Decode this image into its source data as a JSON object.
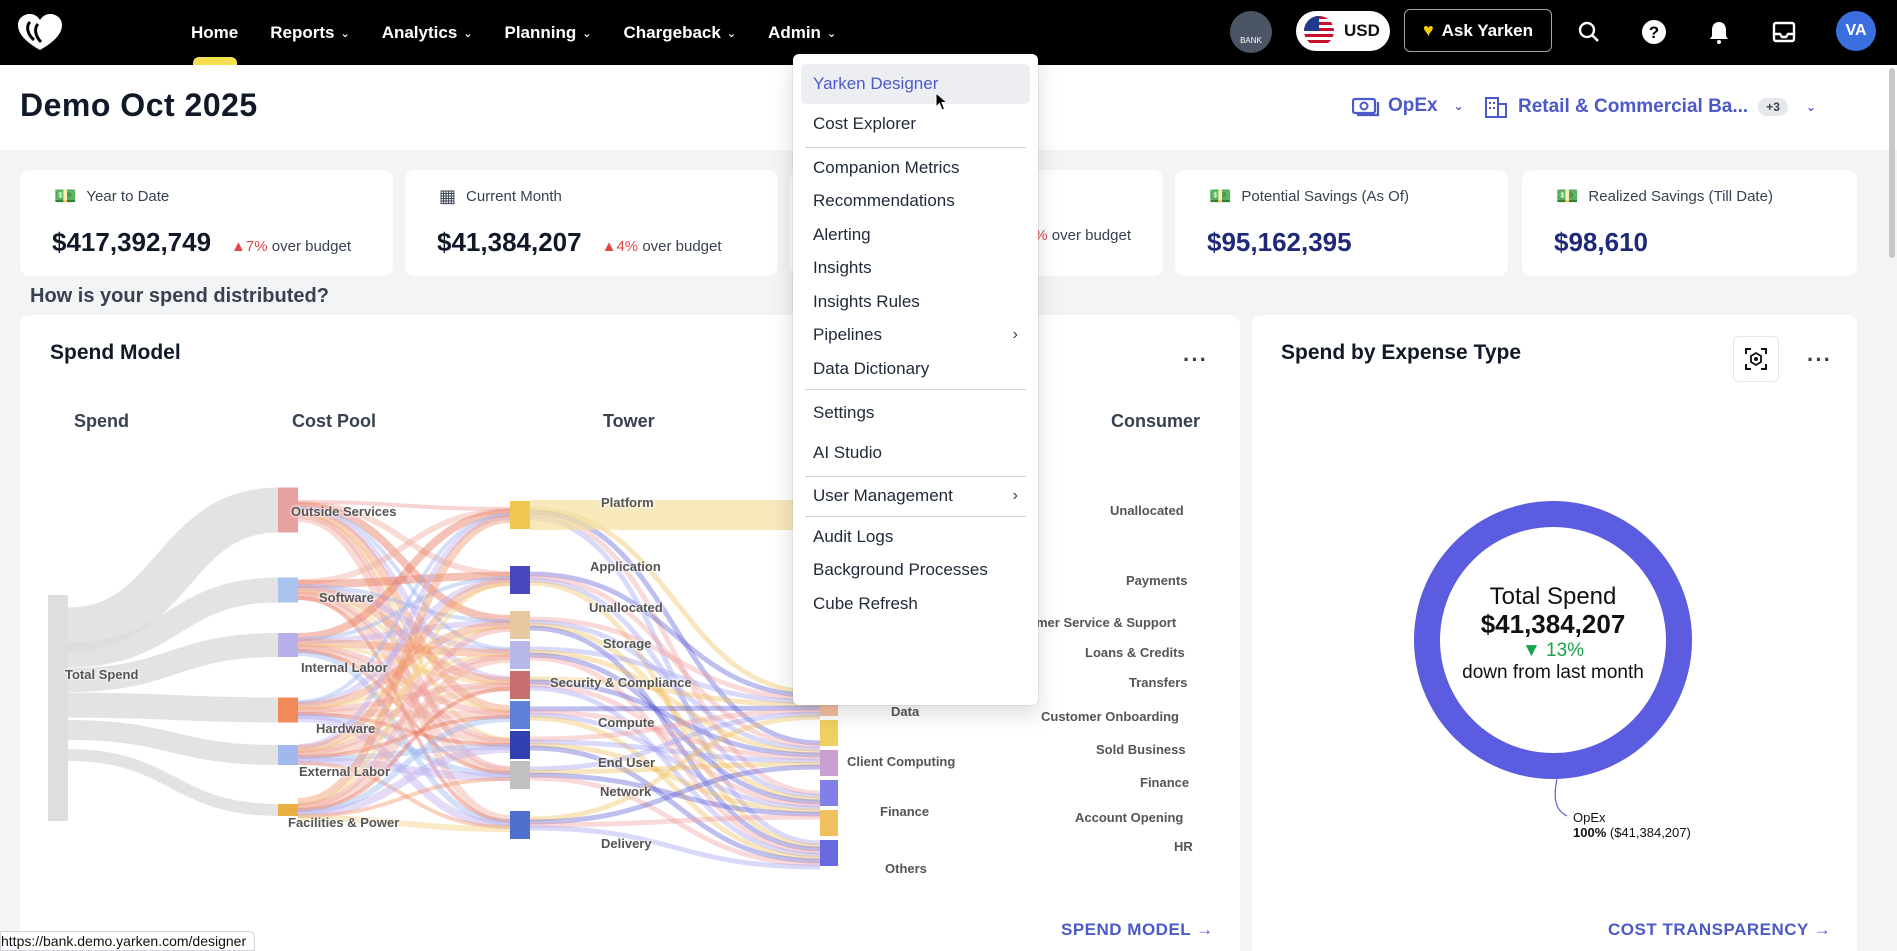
{
  "nav": {
    "items": [
      {
        "label": "Home",
        "active": true,
        "has_menu": false
      },
      {
        "label": "Reports",
        "active": false,
        "has_menu": true
      },
      {
        "label": "Analytics",
        "active": false,
        "has_menu": true
      },
      {
        "label": "Planning",
        "active": false,
        "has_menu": true
      },
      {
        "label": "Chargeback",
        "active": false,
        "has_menu": true
      },
      {
        "label": "Admin",
        "active": false,
        "has_menu": true
      }
    ],
    "bank_label": "BANK",
    "currency": "USD",
    "ask_label": "Ask Yarken",
    "avatar_initials": "VA",
    "icons": [
      "search-icon",
      "help-icon",
      "bell-icon",
      "inbox-icon"
    ]
  },
  "header": {
    "title": "Demo Oct 2025",
    "opex_label": "OpEx",
    "org_label": "Retail & Commercial Ba...",
    "org_extra": "+3"
  },
  "kpis": [
    {
      "label": "Year to Date",
      "value": "$417,392,749",
      "delta": "7%",
      "delta_text": "over budget",
      "icon": "money-icon"
    },
    {
      "label": "Current Month",
      "value": "$41,384,207",
      "delta": "4%",
      "delta_text": "over budget",
      "icon": "calendar-icon"
    },
    {
      "label": "",
      "value": "",
      "delta": "%",
      "delta_text": "over budget",
      "icon": ""
    },
    {
      "label": "Potential Savings (As Of)",
      "value": "$95,162,395",
      "icon": "money-icon"
    },
    {
      "label": "Realized Savings (Till Date)",
      "value": "$98,610",
      "icon": "money-icon"
    }
  ],
  "section_question": "How is your spend distributed?",
  "spend_model": {
    "title": "Spend Model",
    "columns": [
      "Spend",
      "Cost Pool",
      "Tower",
      "Consumer"
    ],
    "spend_nodes": [
      "Total Spend"
    ],
    "cost_pool_nodes": [
      "Outside Services",
      "Software",
      "Internal Labor",
      "Hardware",
      "External Labor",
      "Facilities & Power"
    ],
    "tower_nodes": [
      "Platform",
      "Application",
      "Unallocated",
      "Storage",
      "Security & Compliance",
      "Compute",
      "End User",
      "Network",
      "Delivery"
    ],
    "solution_nodes": [
      "Data",
      "Client Computing",
      "Finance",
      "Others"
    ],
    "consumer_nodes": [
      "Unallocated",
      "Payments",
      "mer Service & Support",
      "Loans & Credits",
      "Transfers",
      "Customer Onboarding",
      "Sold Business",
      "Finance",
      "Account Opening",
      "HR"
    ],
    "link": "SPEND MODEL →"
  },
  "expense_type": {
    "title": "Spend by Expense Type",
    "center_title": "Total Spend",
    "center_value": "$41,384,207",
    "center_delta": "▼ 13%",
    "center_note": "down from last month",
    "legend_name": "OpEx",
    "legend_pct": "100%",
    "legend_value": "($41,384,207)",
    "link": "COST TRANSPARENCY →",
    "colors": {
      "ring": "#5b5ce0",
      "delta": "#16a34a"
    }
  },
  "admin_menu": {
    "groups": [
      [
        {
          "label": "Yarken Designer",
          "hover": true,
          "submenu": false
        },
        {
          "label": "Cost Explorer",
          "hover": false,
          "submenu": false
        }
      ],
      [
        {
          "label": "Companion Metrics",
          "submenu": false
        },
        {
          "label": "Recommendations",
          "submenu": false
        },
        {
          "label": "Alerting",
          "submenu": false
        },
        {
          "label": "Insights",
          "submenu": false
        },
        {
          "label": "Insights Rules",
          "submenu": false
        },
        {
          "label": "Pipelines",
          "submenu": true
        },
        {
          "label": "Data Dictionary",
          "submenu": false
        }
      ],
      [
        {
          "label": "Settings",
          "submenu": false
        },
        {
          "label": "AI Studio",
          "submenu": false
        }
      ],
      [
        {
          "label": "User Management",
          "submenu": true
        }
      ],
      [
        {
          "label": "Audit Logs",
          "submenu": false
        },
        {
          "label": "Background Processes",
          "submenu": false
        },
        {
          "label": "Cube Refresh",
          "submenu": false
        }
      ]
    ]
  },
  "status_url": "https://bank.demo.yarken.com/designer"
}
